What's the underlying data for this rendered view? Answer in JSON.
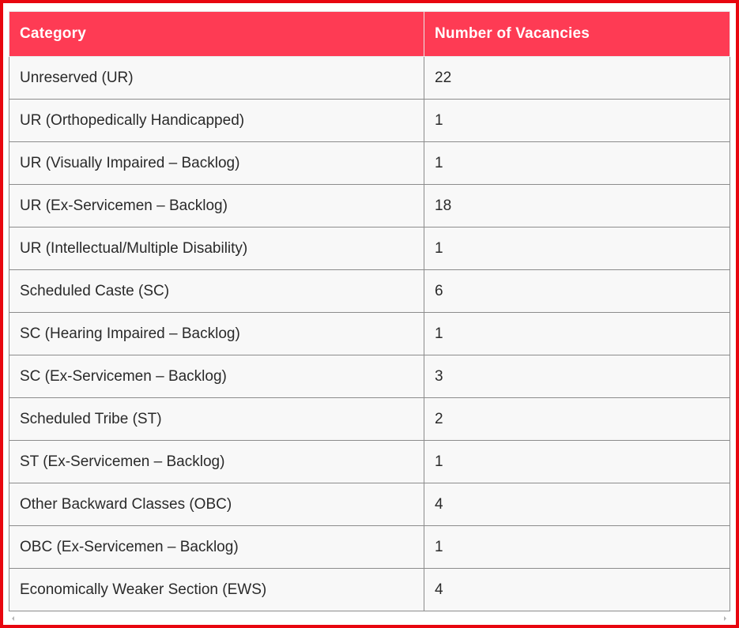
{
  "table": {
    "headers": {
      "category": "Category",
      "count": "Number of Vacancies"
    },
    "rows": [
      {
        "category": "Unreserved (UR)",
        "count": "22"
      },
      {
        "category": "UR (Orthopedically Handicapped)",
        "count": "1"
      },
      {
        "category": "UR (Visually Impaired – Backlog)",
        "count": "1"
      },
      {
        "category": "UR (Ex-Servicemen – Backlog)",
        "count": "18"
      },
      {
        "category": "UR (Intellectual/Multiple Disability)",
        "count": "1"
      },
      {
        "category": "Scheduled Caste (SC)",
        "count": "6"
      },
      {
        "category": "SC (Hearing Impaired – Backlog)",
        "count": "1"
      },
      {
        "category": "SC (Ex-Servicemen – Backlog)",
        "count": "3"
      },
      {
        "category": "Scheduled Tribe (ST)",
        "count": "2"
      },
      {
        "category": "ST (Ex-Servicemen – Backlog)",
        "count": "1"
      },
      {
        "category": "Other Backward Classes (OBC)",
        "count": "4"
      },
      {
        "category": "OBC (Ex-Servicemen – Backlog)",
        "count": "1"
      },
      {
        "category": "Economically Weaker Section (EWS)",
        "count": "4"
      }
    ]
  },
  "colors": {
    "frame_border": "#e8060f",
    "header_background": "#fe3b54",
    "header_text": "#ffffff",
    "row_background": "#f8f8f8"
  },
  "icons": {
    "scroll_left": "scroll-left-arrow-icon",
    "scroll_right": "scroll-right-arrow-icon"
  }
}
